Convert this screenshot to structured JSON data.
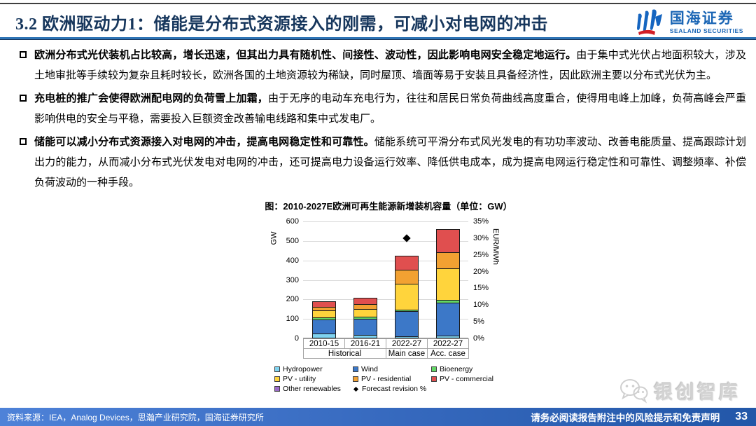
{
  "header": {
    "title": "3.2 欧洲驱动力1：储能是分布式资源接入的刚需，可减小对电网的冲击",
    "logo_cn": "国海证券",
    "logo_en": "SEALAND SECURITIES"
  },
  "bullets": [
    {
      "lead": "欧洲分布式光伏装机占比较高，增长迅速，但其出力具有随机性、间接性、波动性，因此影响电网安全稳定地运行。",
      "rest": "由于集中式光伏占地面积较大，涉及土地审批等手续较为复杂且耗时较长，欧洲各国的土地资源较为稀缺，同时屋顶、墙面等易于安装且具备经济性，因此欧洲主要以分布式光伏为主。"
    },
    {
      "lead": "充电桩的推广会使得欧洲配电网的负荷雪上加霜，",
      "rest": "由于无序的电动车充电行为，往往和居民日常负荷曲线高度重合，使得用电峰上加峰，负荷高峰会严重影响供电的安全与平稳，需要投入巨额资金改善输电线路和集中式发电厂。"
    },
    {
      "lead": "储能可以减小分布式资源接入对电网的冲击，提高电网稳定性和可靠性。",
      "rest": "储能系统可平滑分布式风光发电的有功功率波动、改善电能质量、提高跟踪计划出力的能力，从而减小分布式光伏发电对电网的冲击，还可提高电力设备运行效率、降低供电成本，成为提高电网运行稳定性和可靠性、调整频率、补偿负荷波动的一种手段。"
    }
  ],
  "chart_title": "图：2010-2027E欧洲可再生能源新增装机容量（单位：GW）",
  "chart_data": {
    "type": "bar",
    "stacked": true,
    "title": "图：2010-2027E欧洲可再生能源新增装机容量（单位：GW）",
    "categories": [
      "2010-15",
      "2016-21",
      "2022-27",
      "2022-27"
    ],
    "group_labels": [
      {
        "label": "Historical",
        "span": 2
      },
      {
        "label": "Main case",
        "span": 1
      },
      {
        "label": "Acc. case",
        "span": 1
      }
    ],
    "series": [
      {
        "name": "Hydropower",
        "color": "#7fd3f0",
        "values": [
          20,
          15,
          8,
          12
        ]
      },
      {
        "name": "Wind",
        "color": "#3c78c8",
        "values": [
          72,
          83,
          130,
          168
        ]
      },
      {
        "name": "Bioenergy",
        "color": "#63d666",
        "values": [
          12,
          10,
          7,
          15
        ]
      },
      {
        "name": "PV - utility",
        "color": "#ffd43c",
        "values": [
          36,
          39,
          131,
          161
        ]
      },
      {
        "name": "PV - residential",
        "color": "#f2a132",
        "values": [
          17,
          24,
          72,
          82
        ]
      },
      {
        "name": "PV - commercial",
        "color": "#e04f4f",
        "values": [
          30,
          35,
          72,
          118
        ]
      },
      {
        "name": "Other renewables",
        "color": "#9b6bc8",
        "values": [
          0,
          0,
          0,
          0
        ]
      }
    ],
    "points": [
      {
        "name": "Forecast revision %",
        "marker": "diamond",
        "color": "#000000",
        "category_index": 2,
        "value_pct": 30
      }
    ],
    "y_left": {
      "label": "GW",
      "min": 0,
      "max": 600,
      "step": 100
    },
    "y_right": {
      "label": "EUR/MWh",
      "min": 0,
      "max": 35,
      "step": 5,
      "suffix": "%"
    },
    "grid": true,
    "legend_position": "bottom"
  },
  "watermark": {
    "text": "银创智库"
  },
  "footer": {
    "source": "资料来源：IEA，Analog Devices，思瀚产业研究院，国海证券研究所",
    "disclaimer": "请务必阅读报告附注中的风险提示和免责声明",
    "page": "33"
  }
}
